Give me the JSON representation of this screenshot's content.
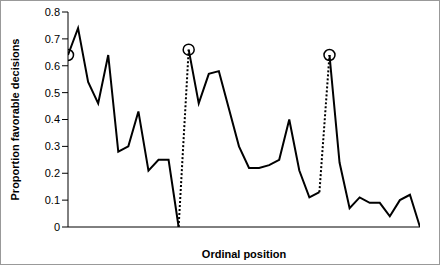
{
  "chart_data": {
    "type": "line",
    "x_label": "Ordinal position",
    "y_label": "Proportion favorable decisions",
    "x": [
      1,
      2,
      3,
      4,
      5,
      6,
      7,
      8,
      9,
      10,
      11,
      12,
      13,
      14,
      15,
      16,
      17,
      18,
      19,
      20,
      21,
      22,
      23,
      24,
      25,
      26,
      27,
      28,
      29,
      30,
      31,
      32,
      33,
      34,
      35,
      36
    ],
    "series": [
      {
        "color": "#000000",
        "line_style": "solid",
        "values": [
          0.64,
          0.74,
          0.54,
          0.46,
          0.64,
          0.28,
          0.3,
          0.43,
          0.21,
          0.25,
          0.25,
          0.0,
          null,
          null,
          null,
          null,
          null,
          null,
          null,
          null,
          null,
          null,
          null,
          null,
          null,
          null,
          null,
          null,
          null,
          null,
          null,
          null,
          null,
          null,
          null,
          null
        ]
      },
      {
        "color": "#000000",
        "line_style": "solid",
        "values": [
          null,
          null,
          null,
          null,
          null,
          null,
          null,
          null,
          null,
          null,
          null,
          null,
          0.66,
          0.46,
          0.57,
          0.58,
          0.44,
          0.3,
          0.22,
          0.22,
          0.23,
          0.25,
          0.4,
          0.21,
          0.11,
          0.13,
          null,
          null,
          null,
          null,
          null,
          null,
          null,
          null,
          null,
          null
        ]
      },
      {
        "color": "#000000",
        "line_style": "solid",
        "values": [
          null,
          null,
          null,
          null,
          null,
          null,
          null,
          null,
          null,
          null,
          null,
          null,
          null,
          null,
          null,
          null,
          null,
          null,
          null,
          null,
          null,
          null,
          null,
          null,
          null,
          null,
          0.64,
          0.24,
          0.07,
          0.11,
          0.09,
          0.09,
          0.04,
          0.1,
          0.12,
          0.0
        ]
      }
    ],
    "marker": "open_circle",
    "xlim": [
      1,
      36
    ],
    "ylim": [
      0,
      0.8
    ],
    "yticks": [
      0,
      0.1,
      0.2,
      0.3,
      0.4,
      0.5,
      0.6,
      0.7,
      0.8
    ],
    "grid": false,
    "tick_labels": "y"
  }
}
